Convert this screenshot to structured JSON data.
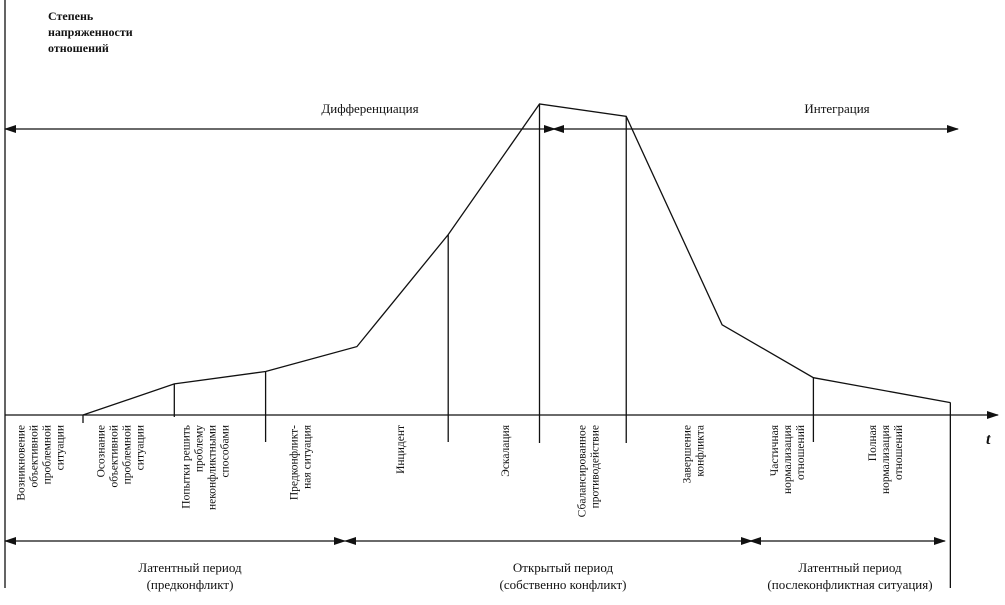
{
  "axis": {
    "y_label_lines": [
      "Степень",
      "напряженности",
      "отношений"
    ],
    "x_label": "t"
  },
  "phases": {
    "differentiation": "Дифференциация",
    "integration": "Интеграция"
  },
  "curve": {
    "points": [
      [
        0.0,
        0.0
      ],
      [
        1.0,
        0.1
      ],
      [
        2.0,
        0.14
      ],
      [
        3.0,
        0.22
      ],
      [
        4.0,
        0.58
      ],
      [
        5.0,
        1.0
      ],
      [
        5.95,
        0.96
      ],
      [
        7.0,
        0.29
      ],
      [
        8.0,
        0.12
      ],
      [
        9.5,
        0.04
      ]
    ],
    "stages": [
      {
        "id": "s1",
        "lines": [
          "Возникновение",
          "объективной",
          "проблемной",
          "ситуации"
        ]
      },
      {
        "id": "s2",
        "lines": [
          "Осознание",
          "объективной",
          "проблемной",
          "ситуации"
        ]
      },
      {
        "id": "s3",
        "lines": [
          "Попытки решить",
          "проблему",
          "неконфликтными",
          "способами"
        ]
      },
      {
        "id": "s4",
        "lines": [
          "Предконфликт-",
          "ная ситуация"
        ]
      },
      {
        "id": "s5",
        "lines": [
          "Инцидент"
        ]
      },
      {
        "id": "s6",
        "lines": [
          "Эскалация"
        ]
      },
      {
        "id": "s7",
        "lines": [
          "Сбалансированное",
          "противодействие"
        ]
      },
      {
        "id": "s8",
        "lines": [
          "Завершение",
          "конфликта"
        ]
      },
      {
        "id": "s9",
        "lines": [
          "Частичная",
          "нормализация",
          "отношений"
        ]
      },
      {
        "id": "s10",
        "lines": [
          "Полная",
          "нормализация",
          "отношений"
        ]
      }
    ]
  },
  "periods": [
    {
      "id": "latent-pre",
      "title": "Латентный период",
      "subtitle": "(предконфликт)"
    },
    {
      "id": "open",
      "title": "Открытый период",
      "subtitle": "(собственно конфликт)"
    },
    {
      "id": "latent-post",
      "title": "Латентный период",
      "subtitle": "(послеконфликтная ситуация)"
    }
  ]
}
